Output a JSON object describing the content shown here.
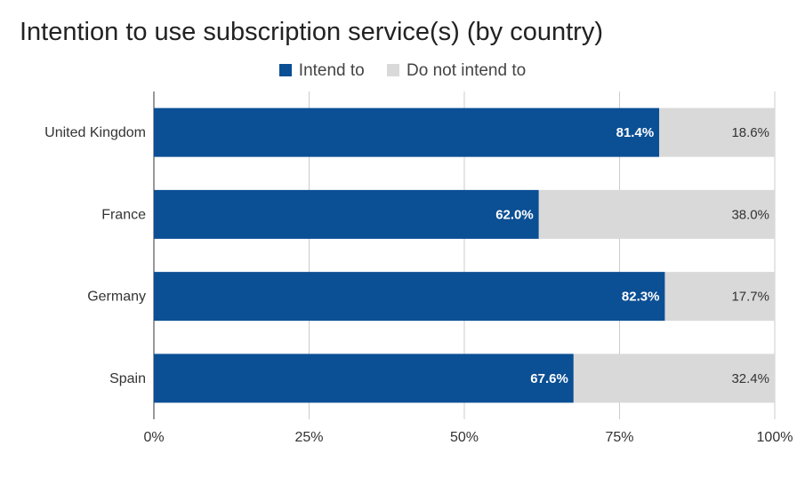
{
  "chart_data": {
    "type": "bar",
    "orientation": "horizontal",
    "stacked": true,
    "title": "Intention to use subscription service(s) (by country)",
    "xlabel": "",
    "ylabel": "",
    "categories": [
      "United Kingdom",
      "France",
      "Germany",
      "Spain"
    ],
    "series": [
      {
        "name": "Intend to",
        "color": "#0b4f94",
        "values": [
          81.4,
          62.0,
          82.3,
          67.6
        ],
        "labels": [
          "81.4%",
          "62.0%",
          "82.3%",
          "67.6%"
        ]
      },
      {
        "name": "Do not intend to",
        "color": "#d9d9d9",
        "values": [
          18.6,
          38.0,
          17.7,
          32.4
        ],
        "labels": [
          "18.6%",
          "38.0%",
          "17.7%",
          "32.4%"
        ]
      }
    ],
    "xlim": [
      0,
      100
    ],
    "xticks": [
      0,
      25,
      50,
      75,
      100
    ],
    "xtick_labels": [
      "0%",
      "25%",
      "50%",
      "75%",
      "100%"
    ],
    "grid": true,
    "legend_position": "top-center"
  }
}
